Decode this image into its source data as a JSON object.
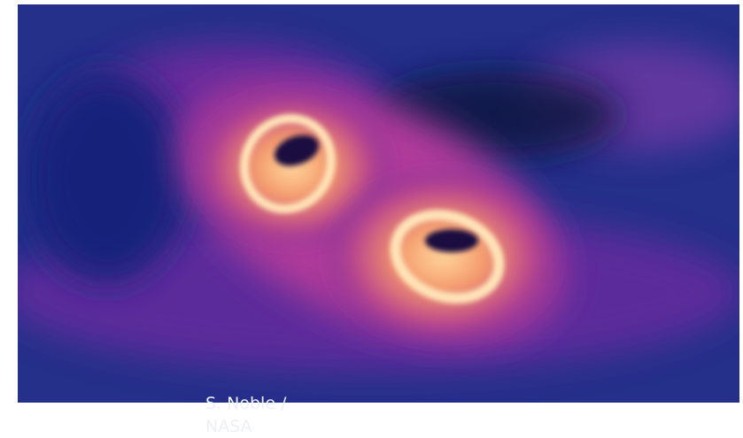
{
  "caption": {
    "lines": [
      "S. Noble /",
      "NASA"
    ]
  }
}
